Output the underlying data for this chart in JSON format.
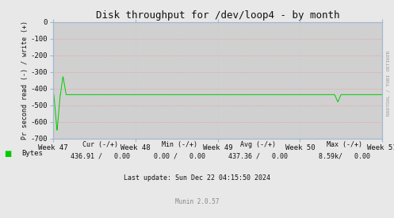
{
  "title": "Disk throughput for /dev/loop4 - by month",
  "ylabel": "Pr second read (-) / write (+)",
  "ylim": [
    -700,
    0
  ],
  "yticks": [
    0,
    -100,
    -200,
    -300,
    -400,
    -500,
    -600,
    -700
  ],
  "bg_color": "#e8e8e8",
  "plot_bg_color": "#d0d0d0",
  "line_color": "#00cc00",
  "grid_color_h": "#ff8080",
  "grid_color_v": "#c0c8d8",
  "spine_color": "#a0b8d0",
  "x_weeks": [
    "Week 47",
    "Week 48",
    "Week 49",
    "Week 50",
    "Week 51"
  ],
  "legend_label": "Bytes",
  "legend_color": "#00cc00",
  "cur_neg": "436.91",
  "cur_pos": "0.00",
  "min_neg": "0.00",
  "min_pos": "0.00",
  "avg_neg": "437.36",
  "avg_pos": "0.00",
  "max_neg": "8.59k",
  "max_pos": "0.00",
  "last_update": "Last update: Sun Dec 22 04:15:50 2024",
  "munin_version": "Munin 2.0.57",
  "rrdtool_label": "RRDTOOL / TOBI OETIKER",
  "title_fontsize": 9,
  "axis_label_fontsize": 6,
  "tick_fontsize": 6.5,
  "legend_fontsize": 6.5,
  "footer_fontsize": 6
}
